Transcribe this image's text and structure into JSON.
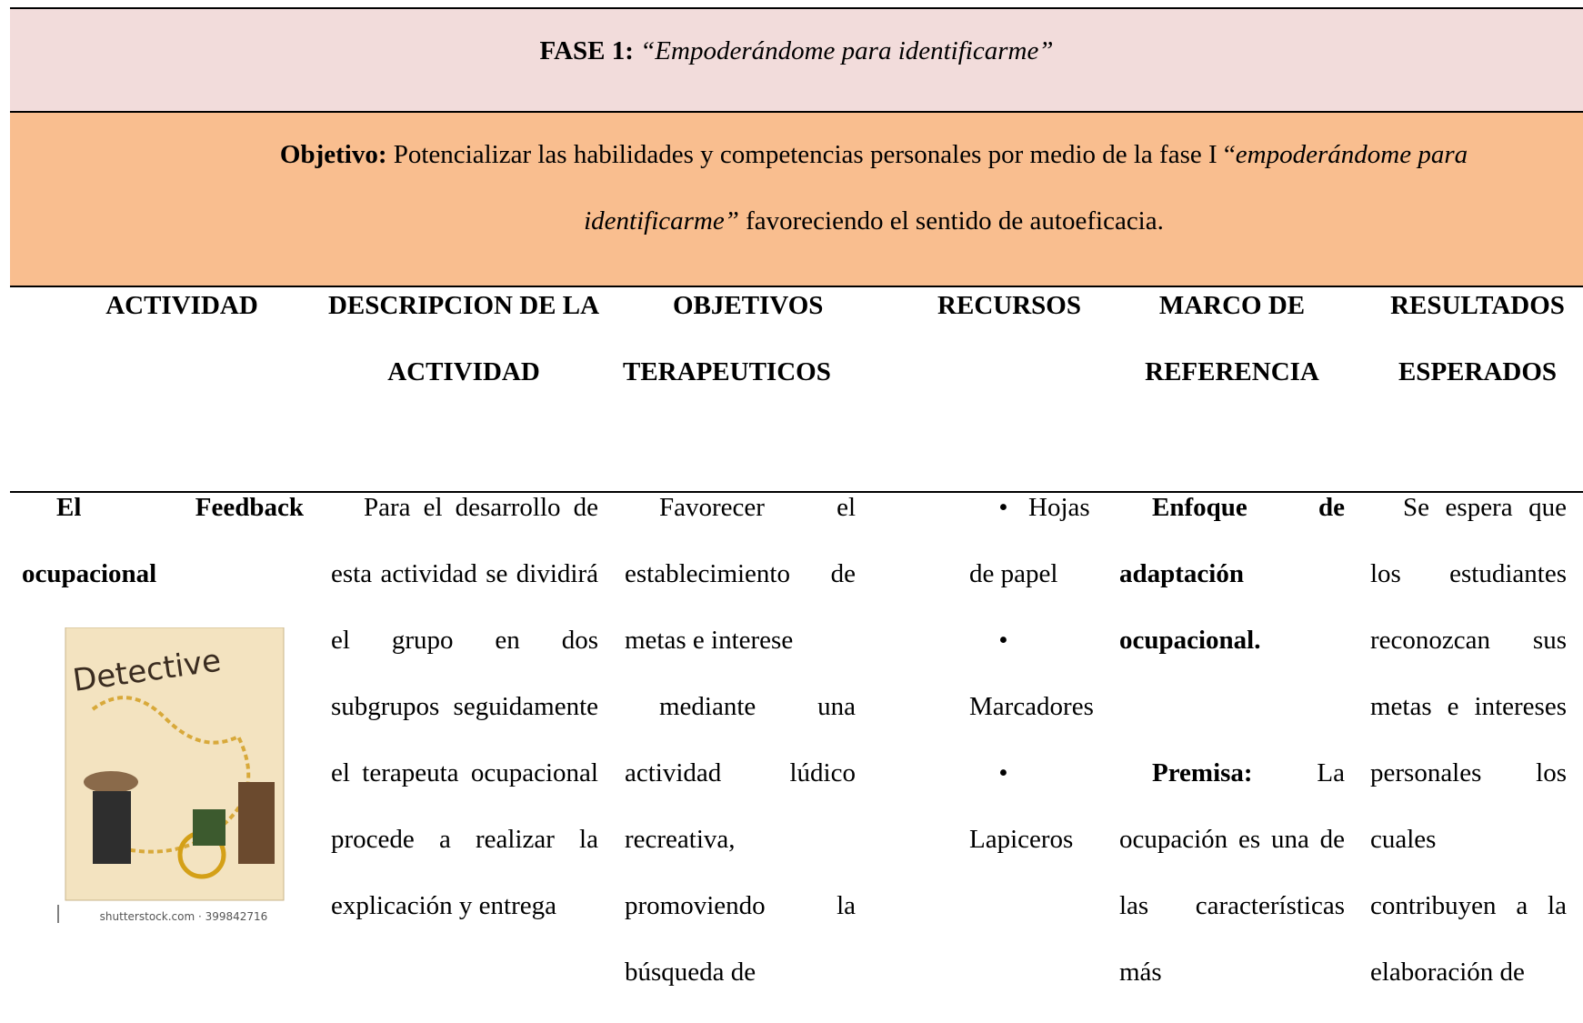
{
  "header": {
    "label": "FASE 1:",
    "title": "“Empoderándome para identificarme”"
  },
  "objective": {
    "label": "Objetivo:",
    "text": "Potencializar las habilidades y competencias personales por medio de la fase I “",
    "italic": "empoderándome para identificarme”",
    "tail": " favoreciendo el sentido de autoeficacia."
  },
  "table": {
    "columns": [
      "ACTIVIDAD",
      "DESCRIPCION DE LA ACTIVIDAD",
      "OBJETIVOS TERAPEUTICOS",
      "RECURSOS",
      "MARCO DE REFERENCIA",
      "RESULTADOS ESPERADOS"
    ],
    "rows": [
      {
        "activity": "El Feedback ocupacional",
        "image": {
          "title": "Detective",
          "caption": "shutterstock.com · 399842716"
        },
        "description": "Para el desarrollo de esta actividad se dividirá el grupo en dos subgrupos seguidamente el terapeuta ocupacional procede a realizar la explicación y entrega",
        "objectives": [
          "Favorecer el establecimiento de metas e interese",
          "mediante una actividad lúdico recreativa, promoviendo la búsqueda de"
        ],
        "resources": [
          "Hojas de papel",
          "Marcadores",
          "Lapiceros"
        ],
        "framework": {
          "approach": "Enfoque de adaptación ocupacional.",
          "premise_label": "Premisa:",
          "premise": "La ocupación es una de las características más"
        },
        "results": "Se espera que los estudiantes reconozcan sus metas e intereses personales los cuales contribuyen a la elaboración de"
      }
    ]
  }
}
